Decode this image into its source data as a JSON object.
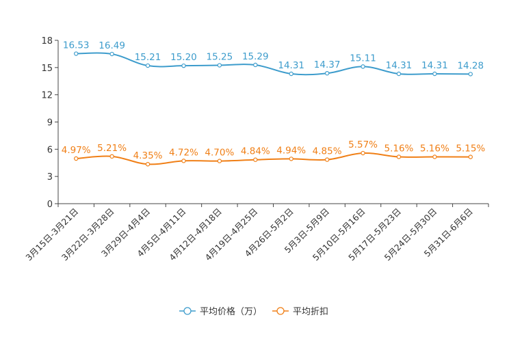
{
  "chart_data": {
    "type": "line",
    "title": "",
    "xlabel": "",
    "ylabel": "",
    "ylim": [
      0,
      18
    ],
    "yticks": [
      0,
      3,
      6,
      9,
      12,
      15,
      18
    ],
    "grid": false,
    "legend_position": "bottom-center",
    "categories": [
      "3月15日-3月21日",
      "3月22日-3月28日",
      "3月29日-4月4日",
      "4月5日-4月11日",
      "4月12日-4月18日",
      "4月19日-4月25日",
      "4月26日-5月2日",
      "5月3日-5月9日",
      "5月10日-5月16日",
      "5月17日-5月23日",
      "5月24日-5月30日",
      "5月31日-6月6日"
    ],
    "series": [
      {
        "name": "平均价格（万）",
        "color": "#3d9ccc",
        "values": [
          16.53,
          16.49,
          15.21,
          15.2,
          15.25,
          15.29,
          14.31,
          14.37,
          15.11,
          14.31,
          14.31,
          14.28
        ],
        "labels": [
          "16.53",
          "16.49",
          "15.21",
          "15.20",
          "15.25",
          "15.29",
          "14.31",
          "14.37",
          "15.11",
          "14.31",
          "14.31",
          "14.28"
        ]
      },
      {
        "name": "平均折扣",
        "color": "#f07f16",
        "values": [
          4.97,
          5.21,
          4.35,
          4.72,
          4.7,
          4.84,
          4.94,
          4.85,
          5.57,
          5.16,
          5.16,
          5.15
        ],
        "labels": [
          "4.97%",
          "5.21%",
          "4.35%",
          "4.72%",
          "4.70%",
          "4.84%",
          "4.94%",
          "4.85%",
          "5.57%",
          "5.16%",
          "5.16%",
          "5.15%"
        ]
      }
    ]
  }
}
